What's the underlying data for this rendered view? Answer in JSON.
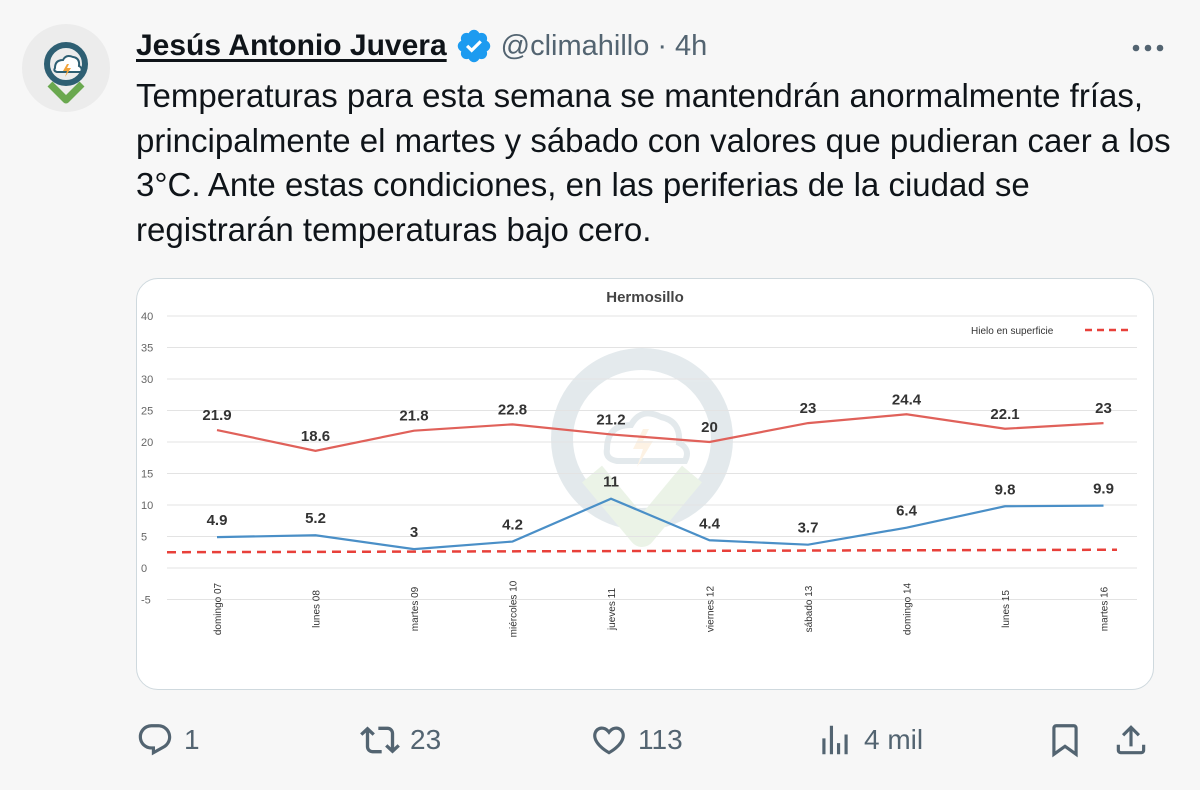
{
  "tweet": {
    "author_name": "Jesús Antonio Juvera",
    "handle": "@climahillo",
    "separator": "·",
    "time": "4h",
    "text": "Temperaturas para esta semana se mantendrán anormalmente frías, principalmente el martes y sábado con valores que pudieran caer a los 3°C. Ante estas condiciones, en las periferias de la ciudad se registrarán temperaturas bajo cero."
  },
  "icons": {
    "avatar": "climahillo-logo",
    "verified": "verified-badge-icon",
    "more": "more-icon",
    "reply": "reply-icon",
    "retweet": "retweet-icon",
    "like": "like-icon",
    "views": "views-icon",
    "bookmark": "bookmark-icon",
    "share": "share-icon"
  },
  "colors": {
    "verified": "#1d9bf0",
    "max_line": "#e0615a",
    "min_line": "#4a8fc7",
    "ice_line": "#e8403a",
    "muted": "#536471"
  },
  "actions": {
    "replies": "1",
    "retweets": "23",
    "likes": "113",
    "views": "4 mil"
  },
  "chart_data": {
    "type": "line",
    "title": "Hermosillo",
    "xlabel": "",
    "ylabel": "",
    "ylim": [
      -5,
      40
    ],
    "yticks": [
      "40",
      "35",
      "30",
      "25",
      "20",
      "15",
      "10",
      "5",
      "0",
      "-5"
    ],
    "categories": [
      "domingo 07",
      "lunes 08",
      "martes 09",
      "miércoles 10",
      "jueves 11",
      "viernes 12",
      "sábado 13",
      "domingo 14",
      "lunes 15",
      "martes 16"
    ],
    "grid": true,
    "legend_position": "top-right",
    "series": [
      {
        "color": "#e0615a",
        "values": [
          21.9,
          18.6,
          21.8,
          22.8,
          21.2,
          20,
          23,
          24.4,
          22.1,
          23
        ],
        "labels": [
          "21.9",
          "18.6",
          "21.8",
          "22.8",
          "21.2",
          "20",
          "23",
          "24.4",
          "22.1",
          "23"
        ]
      },
      {
        "color": "#4a8fc7",
        "values": [
          4.9,
          5.2,
          3,
          4.2,
          11,
          4.4,
          3.7,
          6.4,
          9.8,
          9.9
        ],
        "labels": [
          "4.9",
          "5.2",
          "3",
          "4.2",
          "11",
          "4.4",
          "3.7",
          "6.4",
          "9.8",
          "9.9"
        ]
      },
      {
        "name": "Hielo en superficie",
        "color": "#e8403a",
        "dashed": true,
        "values": [
          2.5,
          2.5,
          2.6,
          2.6,
          2.7,
          2.7,
          2.8,
          2.8,
          2.9,
          2.9
        ]
      }
    ]
  }
}
